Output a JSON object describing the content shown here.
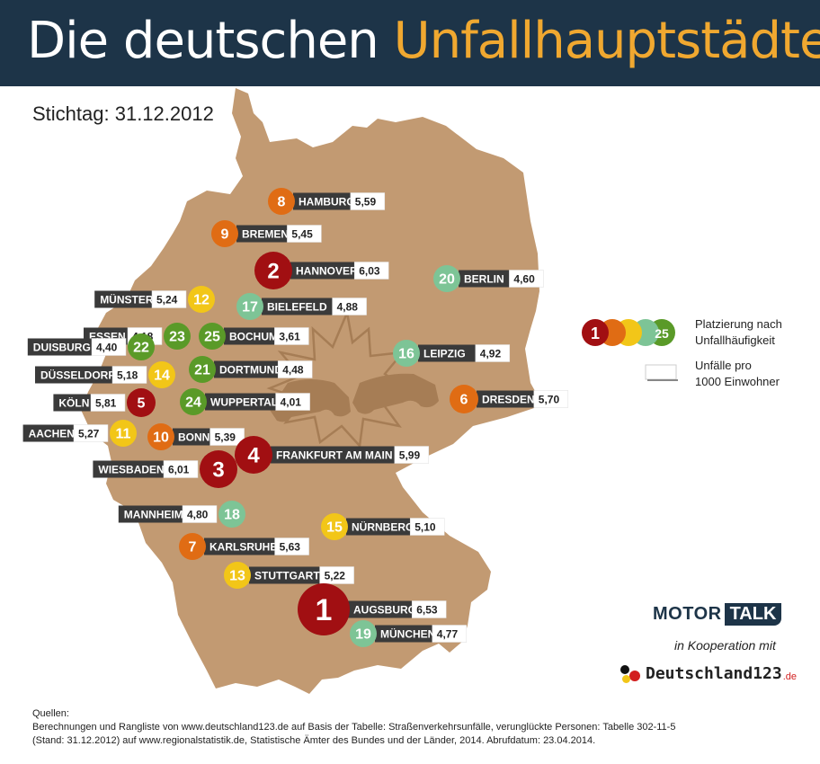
{
  "header": {
    "title_part1": "Die deutschen",
    "title_part2": "Unfallhauptstädte"
  },
  "stichtag": "Stichtag: 31.12.2012",
  "colors": {
    "header_bg": "#1d3448",
    "title_accent": "#f0a830",
    "map_fill": "#c29a72",
    "label_bg": "#3a3a3a",
    "tier1": "#a10f12",
    "tier2": "#e06c14",
    "tier3": "#f2c618",
    "tier4": "#7dc496",
    "tier5": "#5a9a28"
  },
  "chart_data": {
    "type": "map",
    "title": "Die deutschen Unfallhauptstädte",
    "metric": "Unfälle pro 1000 Einwohner",
    "cities": [
      {
        "rank": 1,
        "name": "AUGSBURG",
        "value": "6,53"
      },
      {
        "rank": 2,
        "name": "HANNOVER",
        "value": "6,03"
      },
      {
        "rank": 3,
        "name": "WIESBADEN",
        "value": "6,01"
      },
      {
        "rank": 4,
        "name": "FRANKFURT AM MAIN",
        "value": "5,99"
      },
      {
        "rank": 5,
        "name": "KÖLN",
        "value": "5,81"
      },
      {
        "rank": 6,
        "name": "DRESDEN",
        "value": "5,70"
      },
      {
        "rank": 7,
        "name": "KARLSRUHE",
        "value": "5,63"
      },
      {
        "rank": 8,
        "name": "HAMBURG",
        "value": "5,59"
      },
      {
        "rank": 9,
        "name": "BREMEN",
        "value": "5,45"
      },
      {
        "rank": 10,
        "name": "BONN",
        "value": "5,39"
      },
      {
        "rank": 11,
        "name": "AACHEN",
        "value": "5,27"
      },
      {
        "rank": 12,
        "name": "MÜNSTER",
        "value": "5,24"
      },
      {
        "rank": 13,
        "name": "STUTTGART",
        "value": "5,22"
      },
      {
        "rank": 14,
        "name": "DÜSSELDORF",
        "value": "5,18"
      },
      {
        "rank": 15,
        "name": "NÜRNBERG",
        "value": "5,10"
      },
      {
        "rank": 16,
        "name": "LEIPZIG",
        "value": "4,92"
      },
      {
        "rank": 17,
        "name": "BIELEFELD",
        "value": "4,88"
      },
      {
        "rank": 18,
        "name": "MANNHEIM",
        "value": "4,80"
      },
      {
        "rank": 19,
        "name": "MÜNCHEN",
        "value": "4,77"
      },
      {
        "rank": 20,
        "name": "BERLIN",
        "value": "4,60"
      },
      {
        "rank": 21,
        "name": "DORTMUND",
        "value": "4,48"
      },
      {
        "rank": 22,
        "name": "DUISBURG",
        "value": "4,40"
      },
      {
        "rank": 23,
        "name": "ESSEN",
        "value": "4,18"
      },
      {
        "rank": 24,
        "name": "WUPPERTAL",
        "value": "4,01"
      },
      {
        "rank": 25,
        "name": "BOCHUM",
        "value": "3,61"
      }
    ],
    "legend": {
      "rank_first": "1",
      "rank_last": "25",
      "rank_label_line1": "Platzierung nach",
      "rank_label_line2": "Unfallhäufigkeit",
      "value_label_line1": "Unfälle pro",
      "value_label_line2": "1000 Einwohner"
    }
  },
  "footer": {
    "brand_motor": "MOTOR",
    "brand_talk": "TALK",
    "kooperation": "in Kooperation mit",
    "partner_name": "Deutschland123",
    "partner_tld": ".de",
    "sources_title": "Quellen:",
    "sources_line1": "Berechnungen und Rangliste von www.deutschland123.de auf Basis der Tabelle: Straßenverkehrsunfälle, verunglückte Personen: Tabelle 302-11-5",
    "sources_line2": "(Stand: 31.12.2012) auf www.regionalstatistik.de, Statistische Ämter des Bundes und der Länder, 2014. Abrufdatum: 23.04.2014."
  }
}
